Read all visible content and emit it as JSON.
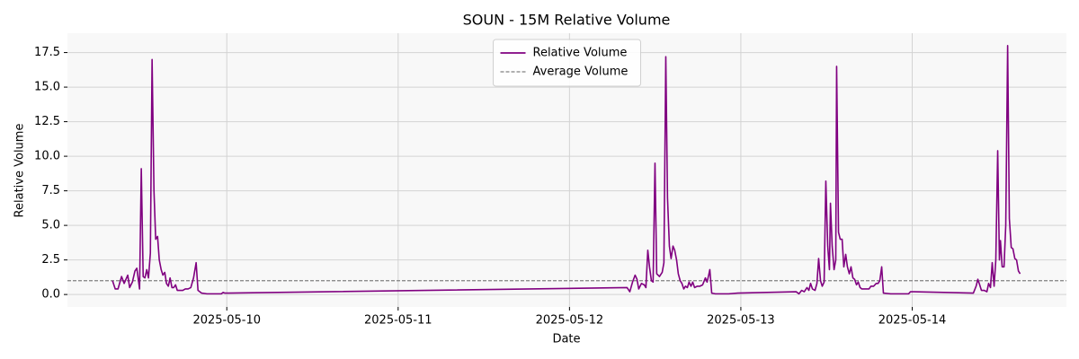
{
  "chart_data": {
    "type": "line",
    "title": "SOUN - 15M Relative Volume",
    "x_label": "Date",
    "y_label": "Relative Volume",
    "x": [
      9.333,
      9.349,
      9.365,
      9.386,
      9.401,
      9.422,
      9.433,
      9.449,
      9.464,
      9.475,
      9.491,
      9.501,
      9.512,
      9.522,
      9.533,
      9.543,
      9.554,
      9.564,
      9.575,
      9.585,
      9.596,
      9.606,
      9.617,
      9.627,
      9.638,
      9.648,
      9.659,
      9.669,
      9.68,
      9.69,
      9.701,
      9.711,
      9.727,
      9.743,
      9.758,
      9.774,
      9.79,
      9.806,
      9.821,
      9.832,
      9.853,
      9.884,
      9.937,
      9.968,
      9.979,
      9.989,
      12.336,
      12.352,
      12.368,
      12.383,
      12.394,
      12.404,
      12.42,
      12.436,
      12.446,
      12.457,
      12.467,
      12.478,
      12.488,
      12.499,
      12.509,
      12.525,
      12.541,
      12.551,
      12.562,
      12.572,
      12.583,
      12.593,
      12.604,
      12.614,
      12.625,
      12.635,
      12.646,
      12.656,
      12.667,
      12.677,
      12.688,
      12.698,
      12.709,
      12.719,
      12.73,
      12.746,
      12.761,
      12.777,
      12.793,
      12.803,
      12.814,
      12.819,
      12.83,
      12.851,
      12.929,
      12.982,
      13.323,
      13.339,
      13.355,
      13.37,
      13.386,
      13.397,
      13.407,
      13.418,
      13.433,
      13.444,
      13.454,
      13.465,
      13.475,
      13.486,
      13.496,
      13.507,
      13.517,
      13.523,
      13.533,
      13.544,
      13.554,
      13.559,
      13.57,
      13.58,
      13.591,
      13.601,
      13.612,
      13.622,
      13.633,
      13.643,
      13.654,
      13.664,
      13.675,
      13.685,
      13.696,
      13.706,
      13.727,
      13.748,
      13.759,
      13.775,
      13.79,
      13.801,
      13.811,
      13.822,
      13.832,
      13.874,
      13.927,
      13.979,
      13.99,
      14.011,
      14.357,
      14.373,
      14.383,
      14.394,
      14.404,
      14.42,
      14.436,
      14.446,
      14.457,
      14.467,
      14.478,
      14.488,
      14.499,
      14.509,
      14.515,
      14.525,
      14.536,
      14.546,
      14.557,
      14.567,
      14.578,
      14.588,
      14.599,
      14.609,
      14.62,
      14.63
    ],
    "series": [
      {
        "name": "Relative Volume",
        "color": "#800080",
        "values": [
          1.0,
          0.4,
          0.4,
          1.3,
          0.8,
          1.4,
          0.5,
          0.9,
          1.7,
          1.9,
          0.4,
          9.1,
          1.3,
          1.2,
          1.8,
          1.2,
          3.0,
          17.0,
          7.5,
          4.0,
          4.2,
          2.5,
          1.8,
          1.4,
          1.6,
          0.8,
          0.6,
          1.2,
          0.5,
          0.5,
          0.7,
          0.3,
          0.3,
          0.3,
          0.4,
          0.4,
          0.5,
          1.2,
          2.3,
          0.3,
          0.1,
          0.05,
          0.05,
          0.05,
          0.15,
          0.1,
          0.5,
          0.2,
          0.9,
          1.4,
          1.1,
          0.4,
          0.8,
          0.7,
          0.5,
          3.2,
          2.0,
          1.0,
          0.9,
          9.5,
          1.5,
          1.3,
          1.6,
          2.3,
          17.2,
          7.0,
          3.5,
          2.6,
          3.5,
          3.2,
          2.5,
          1.5,
          1.0,
          0.8,
          0.4,
          0.6,
          0.5,
          0.9,
          0.6,
          0.9,
          0.5,
          0.6,
          0.6,
          0.7,
          1.2,
          0.9,
          1.5,
          1.8,
          0.1,
          0.05,
          0.05,
          0.1,
          0.2,
          0.05,
          0.3,
          0.2,
          0.5,
          0.3,
          0.8,
          0.4,
          0.3,
          0.8,
          2.6,
          1.0,
          0.6,
          0.9,
          8.2,
          3.5,
          1.8,
          6.6,
          3.5,
          1.8,
          2.5,
          16.5,
          4.5,
          4.0,
          4.0,
          2.0,
          2.9,
          2.0,
          1.5,
          2.0,
          1.2,
          1.1,
          0.7,
          0.9,
          0.5,
          0.4,
          0.4,
          0.4,
          0.6,
          0.6,
          0.8,
          0.8,
          1.0,
          2.0,
          0.1,
          0.05,
          0.05,
          0.05,
          0.2,
          0.2,
          0.1,
          0.6,
          1.1,
          0.7,
          0.3,
          0.3,
          0.2,
          0.8,
          0.5,
          2.3,
          0.6,
          2.5,
          10.4,
          2.5,
          3.9,
          2.0,
          2.0,
          5.0,
          18.0,
          5.5,
          3.4,
          3.3,
          2.6,
          2.5,
          1.7,
          1.5
        ]
      }
    ],
    "hlines": [
      {
        "name": "Average Volume",
        "value": 1.0,
        "color": "#808080",
        "dashed": true
      }
    ],
    "xlim": [
      9.07,
      14.9
    ],
    "xticks": [
      {
        "value": 10,
        "label": "2025-05-10"
      },
      {
        "value": 11,
        "label": "2025-05-11"
      },
      {
        "value": 12,
        "label": "2025-05-12"
      },
      {
        "value": 13,
        "label": "2025-05-13"
      },
      {
        "value": 14,
        "label": "2025-05-14"
      }
    ],
    "ylim": [
      -0.9,
      18.9
    ],
    "yticks": [
      {
        "value": 0,
        "label": "0.0"
      },
      2.5,
      {
        "value": 5,
        "label": "5.0"
      },
      7.5,
      {
        "value": 10,
        "label": "10.0"
      },
      12.5,
      {
        "value": 15,
        "label": "15.0"
      },
      17.5
    ],
    "grid": true,
    "legend": "upper center"
  }
}
